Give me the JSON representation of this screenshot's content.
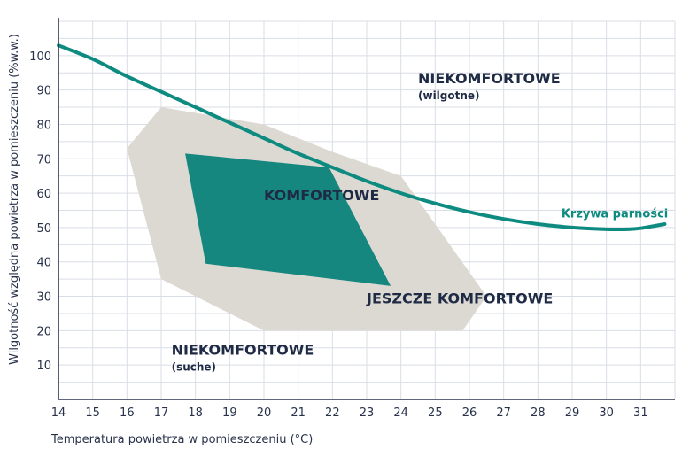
{
  "chart_data": {
    "type": "area",
    "xlabel": "Temperatura powietrza w pomieszczeniu (°C)",
    "ylabel": "Wilgotność względna powietrza w pomieszczeniu   (%w.w.)",
    "xlim": [
      14,
      32
    ],
    "ylim": [
      0,
      110
    ],
    "x_ticks": [
      14,
      15,
      16,
      17,
      18,
      19,
      20,
      21,
      22,
      23,
      24,
      25,
      26,
      27,
      28,
      29,
      30,
      31
    ],
    "y_ticks": [
      10,
      20,
      30,
      40,
      50,
      60,
      70,
      80,
      90,
      100
    ],
    "grid": true,
    "colors": {
      "curve": "#0e8b80",
      "comfort": "#16877f",
      "semi_comfort": "#dcd9d3",
      "grid": "#d9dee6",
      "axis": "#2a3550",
      "text": "#1f2a44"
    },
    "curve": {
      "name": "Krzywa parności",
      "points": [
        [
          14,
          103
        ],
        [
          15,
          99
        ],
        [
          16,
          94
        ],
        [
          17,
          89.5
        ],
        [
          18,
          85
        ],
        [
          19,
          80.5
        ],
        [
          20,
          76
        ],
        [
          21,
          71.5
        ],
        [
          22,
          67.5
        ],
        [
          23,
          63.5
        ],
        [
          24,
          60
        ],
        [
          25,
          57
        ],
        [
          26,
          54.5
        ],
        [
          27,
          52.5
        ],
        [
          28,
          51
        ],
        [
          29,
          50
        ],
        [
          30,
          49.5
        ],
        [
          30.6,
          49.5
        ],
        [
          31,
          49.8
        ],
        [
          31.7,
          51
        ]
      ]
    },
    "regions": [
      {
        "name": "JESZCZE KOMFORTOWE",
        "polygon": [
          [
            16,
            73
          ],
          [
            17,
            85
          ],
          [
            20,
            80
          ],
          [
            22,
            72
          ],
          [
            24,
            65
          ],
          [
            26.5,
            30
          ],
          [
            25.8,
            20
          ],
          [
            20,
            20
          ],
          [
            17,
            35
          ]
        ]
      },
      {
        "name": "KOMFORTOWE",
        "polygon": [
          [
            17.7,
            71.5
          ],
          [
            21.9,
            67.5
          ],
          [
            23.7,
            33
          ],
          [
            18.3,
            39.5
          ]
        ]
      }
    ],
    "annotations": [
      {
        "text": "NIEKOMFORTOWE",
        "sub": "(wilgotne)",
        "x": 24.5,
        "y": 92
      },
      {
        "text": "KOMFORTOWE",
        "x": 20,
        "y": 58
      },
      {
        "text": "JESZCZE KOMFORTOWE",
        "x": 23,
        "y": 28
      },
      {
        "text": "NIEKOMFORTOWE",
        "sub": "(suche)",
        "x": 17.3,
        "y": 13
      },
      {
        "text": "Krzywa parności",
        "x": 31.8,
        "y": 53
      }
    ]
  }
}
